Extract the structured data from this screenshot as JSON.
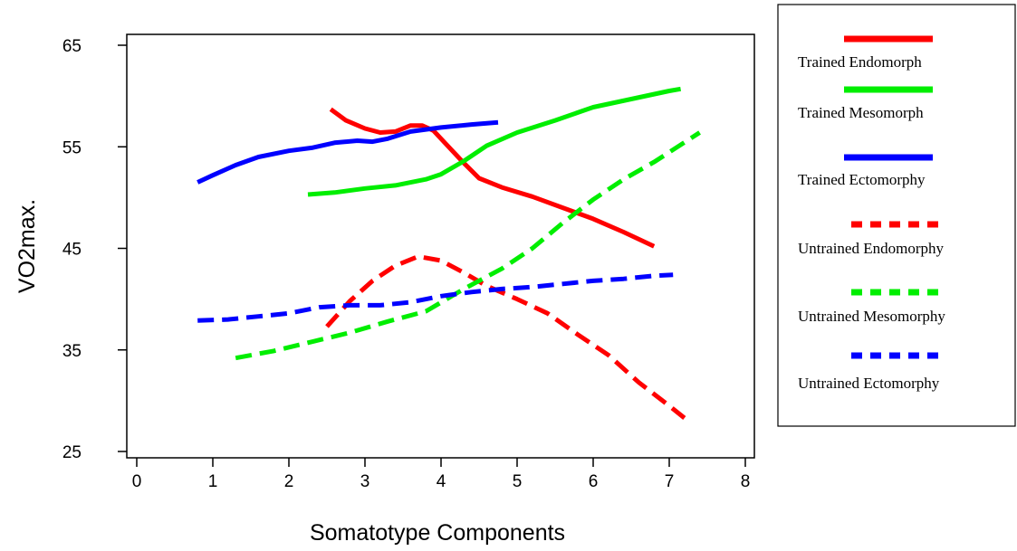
{
  "chart_data": {
    "type": "line",
    "title": "",
    "xlabel": "Somatotype Components",
    "ylabel": "VO2max.",
    "xlim": [
      0,
      8
    ],
    "ylim": [
      25,
      65
    ],
    "x_ticks": [
      0,
      1,
      2,
      3,
      4,
      5,
      6,
      7,
      8
    ],
    "y_ticks": [
      25,
      35,
      45,
      55,
      65
    ],
    "grid": false,
    "legend_position": "right",
    "series": [
      {
        "name": "Trained Endomorph",
        "color": "#ff0000",
        "style": "solid",
        "points": [
          [
            2.55,
            58.7
          ],
          [
            2.75,
            57.6
          ],
          [
            3.0,
            56.8
          ],
          [
            3.2,
            56.4
          ],
          [
            3.4,
            56.5
          ],
          [
            3.6,
            57.1
          ],
          [
            3.75,
            57.1
          ],
          [
            3.9,
            56.6
          ],
          [
            4.1,
            55.0
          ],
          [
            4.3,
            53.4
          ],
          [
            4.5,
            51.9
          ],
          [
            4.8,
            51.0
          ],
          [
            5.2,
            50.1
          ],
          [
            5.6,
            49.0
          ],
          [
            6.0,
            47.9
          ],
          [
            6.4,
            46.6
          ],
          [
            6.8,
            45.2
          ]
        ]
      },
      {
        "name": "Trained Mesomorph",
        "color": "#00ee00",
        "style": "solid",
        "points": [
          [
            2.25,
            50.3
          ],
          [
            2.6,
            50.5
          ],
          [
            3.0,
            50.9
          ],
          [
            3.4,
            51.2
          ],
          [
            3.8,
            51.8
          ],
          [
            4.0,
            52.3
          ],
          [
            4.3,
            53.6
          ],
          [
            4.6,
            55.1
          ],
          [
            5.0,
            56.4
          ],
          [
            5.5,
            57.6
          ],
          [
            6.0,
            58.9
          ],
          [
            6.5,
            59.7
          ],
          [
            7.0,
            60.5
          ],
          [
            7.15,
            60.7
          ]
        ]
      },
      {
        "name": "Trained Ectomorphy",
        "color": "#0000ff",
        "style": "solid",
        "points": [
          [
            0.8,
            51.5
          ],
          [
            1.0,
            52.2
          ],
          [
            1.3,
            53.2
          ],
          [
            1.6,
            54.0
          ],
          [
            2.0,
            54.6
          ],
          [
            2.3,
            54.9
          ],
          [
            2.6,
            55.4
          ],
          [
            2.9,
            55.6
          ],
          [
            3.1,
            55.5
          ],
          [
            3.3,
            55.8
          ],
          [
            3.6,
            56.5
          ],
          [
            4.0,
            56.9
          ],
          [
            4.4,
            57.2
          ],
          [
            4.75,
            57.4
          ]
        ]
      },
      {
        "name": "Untrained Endomorphy",
        "color": "#ff0000",
        "style": "dashed",
        "points": [
          [
            2.5,
            37.3
          ],
          [
            2.8,
            39.8
          ],
          [
            3.1,
            41.8
          ],
          [
            3.4,
            43.3
          ],
          [
            3.7,
            44.2
          ],
          [
            4.0,
            43.8
          ],
          [
            4.3,
            42.6
          ],
          [
            4.6,
            41.3
          ],
          [
            5.0,
            40.0
          ],
          [
            5.4,
            38.6
          ],
          [
            5.8,
            36.5
          ],
          [
            6.2,
            34.5
          ],
          [
            6.6,
            31.8
          ],
          [
            7.0,
            29.5
          ],
          [
            7.2,
            28.3
          ]
        ]
      },
      {
        "name": "Untrained Mesomorphy",
        "color": "#00ee00",
        "style": "dashed",
        "points": [
          [
            1.3,
            34.2
          ],
          [
            1.8,
            34.9
          ],
          [
            2.3,
            35.8
          ],
          [
            2.8,
            36.7
          ],
          [
            3.3,
            37.8
          ],
          [
            3.8,
            38.8
          ],
          [
            4.3,
            41.0
          ],
          [
            4.8,
            43.0
          ],
          [
            5.2,
            45.0
          ],
          [
            5.6,
            47.5
          ],
          [
            6.0,
            49.8
          ],
          [
            6.4,
            51.8
          ],
          [
            6.8,
            53.5
          ],
          [
            7.4,
            56.4
          ]
        ]
      },
      {
        "name": "Untrained Ectomorphy",
        "color": "#0000ff",
        "style": "dashed",
        "points": [
          [
            0.8,
            37.9
          ],
          [
            1.2,
            38.0
          ],
          [
            1.6,
            38.3
          ],
          [
            2.0,
            38.6
          ],
          [
            2.4,
            39.2
          ],
          [
            2.8,
            39.4
          ],
          [
            3.2,
            39.4
          ],
          [
            3.6,
            39.7
          ],
          [
            4.0,
            40.3
          ],
          [
            4.4,
            40.7
          ],
          [
            4.8,
            41.0
          ],
          [
            5.2,
            41.2
          ],
          [
            5.6,
            41.5
          ],
          [
            6.0,
            41.8
          ],
          [
            6.4,
            42.0
          ],
          [
            6.8,
            42.3
          ],
          [
            7.05,
            42.4
          ]
        ]
      }
    ]
  }
}
